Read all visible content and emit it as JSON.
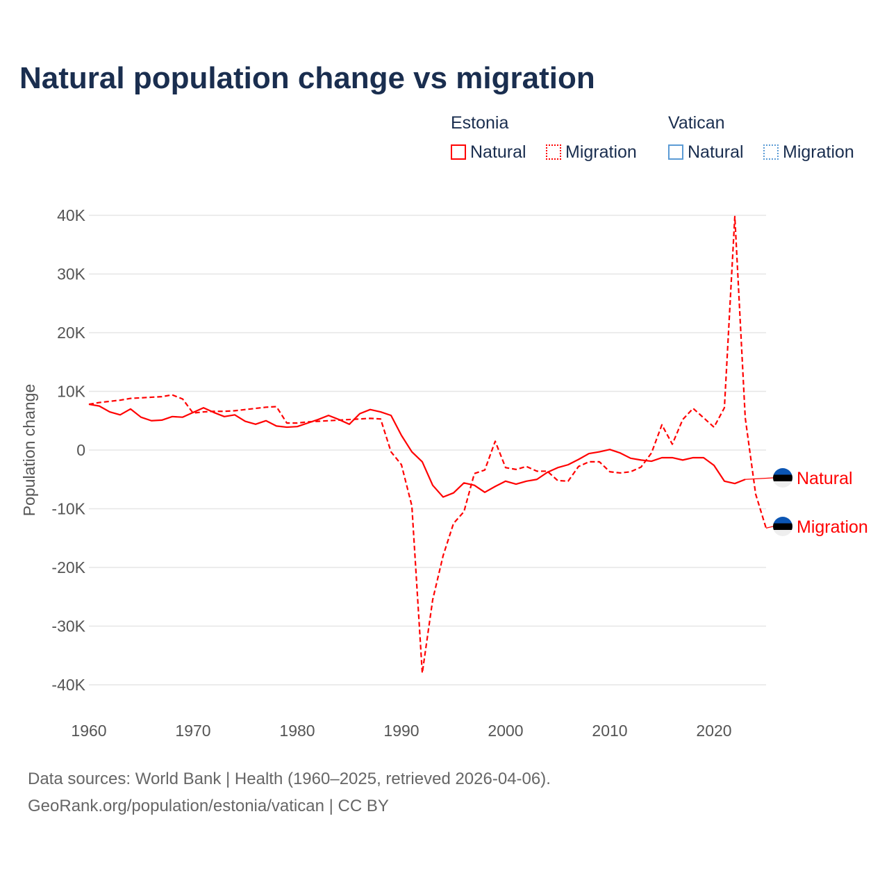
{
  "title": "Natural population change vs migration",
  "legend": {
    "groups": [
      {
        "name": "Estonia",
        "color": "#ff0000",
        "items": [
          "Natural",
          "Migration"
        ]
      },
      {
        "name": "Vatican",
        "color": "#5b9bd5",
        "items": [
          "Natural",
          "Migration"
        ]
      }
    ]
  },
  "footer": {
    "line1": "Data sources: World Bank | Health (1960–2025, retrieved 2026-04-06).",
    "line2": "GeoRank.org/population/estonia/vatican | CC BY"
  },
  "chart_data": {
    "type": "line",
    "ylabel": "Population change",
    "xlabel": "",
    "xlim": [
      1960,
      2025
    ],
    "ylim": [
      -40000,
      40000
    ],
    "x_ticks": [
      1960,
      1970,
      1980,
      1990,
      2000,
      2010,
      2020
    ],
    "y_ticks": [
      -40000,
      -30000,
      -20000,
      -10000,
      0,
      10000,
      20000,
      30000,
      40000
    ],
    "y_tick_labels": [
      "-40K",
      "-30K",
      "-20K",
      "-10K",
      "0",
      "10K",
      "20K",
      "30K",
      "40K"
    ],
    "grid": true,
    "series": [
      {
        "name": "Natural",
        "country": "Estonia",
        "color": "#ff0000",
        "style": "solid",
        "start_year": 1960,
        "values": [
          7800,
          7500,
          6500,
          6000,
          7000,
          5600,
          5000,
          5100,
          5700,
          5600,
          6400,
          7200,
          6400,
          5700,
          6000,
          4900,
          4400,
          5000,
          4100,
          3900,
          4000,
          4600,
          5200,
          5900,
          5200,
          4400,
          6200,
          6900,
          6500,
          5900,
          2500,
          -300,
          -2000,
          -6000,
          -8000,
          -7300,
          -5600,
          -6000,
          -7200,
          -6200,
          -5300,
          -5800,
          -5300,
          -5000,
          -3800,
          -3000,
          -2500,
          -1600,
          -600,
          -300,
          100,
          -500,
          -1400,
          -1700,
          -1900,
          -1300,
          -1300,
          -1700,
          -1300,
          -1300,
          -2600,
          -5300,
          -5700,
          -5000
        ]
      },
      {
        "name": "Migration",
        "country": "Estonia",
        "color": "#ff0000",
        "style": "dashed",
        "start_year": 1960,
        "values": [
          7800,
          8100,
          8300,
          8500,
          8800,
          8900,
          9000,
          9100,
          9400,
          8700,
          6300,
          6500,
          6600,
          6600,
          6700,
          6900,
          7100,
          7300,
          7400,
          4600,
          4600,
          4800,
          4900,
          5000,
          5100,
          5200,
          5300,
          5400,
          5300,
          -300,
          -2500,
          -9500,
          -38000,
          -25500,
          -18000,
          -12500,
          -10500,
          -4000,
          -3400,
          1500,
          -3000,
          -3300,
          -2800,
          -3600,
          -3600,
          -5200,
          -5300,
          -2800,
          -2000,
          -2000,
          -3700,
          -3900,
          -3700,
          -2900,
          -500,
          4300,
          1000,
          5200,
          7100,
          5500,
          3900,
          7200,
          39800,
          5500,
          -7500,
          -13300
        ]
      }
    ],
    "end_labels": [
      "Natural",
      "Migration"
    ]
  }
}
